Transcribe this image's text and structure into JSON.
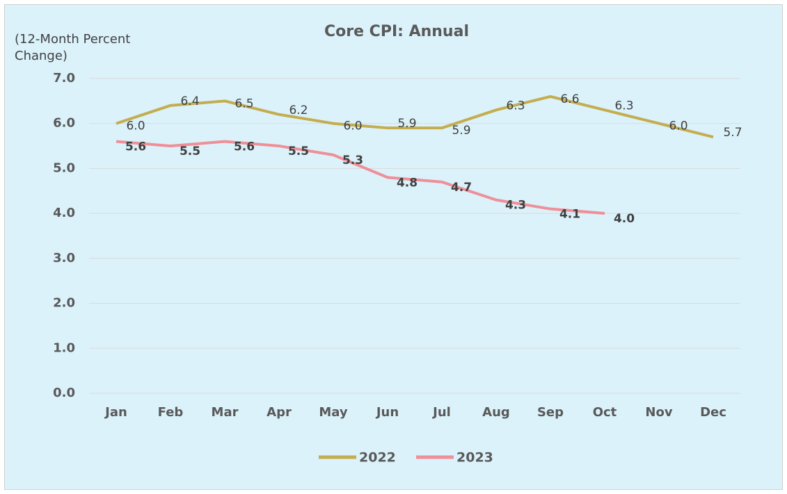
{
  "chart_data": {
    "type": "line",
    "title": "Core CPI:  Annual",
    "y_label": "(12-Month Percent Change)",
    "categories": [
      "Jan",
      "Feb",
      "Mar",
      "Apr",
      "May",
      "Jun",
      "Jul",
      "Aug",
      "Sep",
      "Oct",
      "Nov",
      "Dec"
    ],
    "series": [
      {
        "name": "2022",
        "color": "#c4ad4e",
        "values": [
          6.0,
          6.4,
          6.5,
          6.2,
          6.0,
          5.9,
          5.9,
          6.3,
          6.6,
          6.3,
          6.0,
          5.7
        ],
        "value_labels": [
          "6.0",
          "6.4",
          "6.5",
          "6.2",
          "6.0",
          "5.9",
          "5.9",
          "6.3",
          "6.6",
          "6.3",
          "6.0",
          "5.7"
        ]
      },
      {
        "name": "2023",
        "color": "#ef8f98",
        "values": [
          5.6,
          5.5,
          5.6,
          5.5,
          5.3,
          4.8,
          4.7,
          4.3,
          4.1,
          4.0,
          null,
          null
        ],
        "value_labels": [
          "5.6",
          "5.5",
          "5.6",
          "5.5",
          "5.3",
          "4.8",
          "4.7",
          "4.3",
          "4.1",
          "4.0",
          null,
          null
        ]
      }
    ],
    "ylim": [
      0,
      7
    ],
    "yticks": [
      {
        "value": 0,
        "label": "0.0"
      },
      {
        "value": 1,
        "label": "1.0"
      },
      {
        "value": 2,
        "label": "2.0"
      },
      {
        "value": 3,
        "label": "3.0"
      },
      {
        "value": 4,
        "label": "4.0"
      },
      {
        "value": 5,
        "label": "5.0"
      },
      {
        "value": 6,
        "label": "6.0"
      },
      {
        "value": 7,
        "label": "7.0"
      }
    ],
    "grid": true,
    "legend": "bottom"
  }
}
